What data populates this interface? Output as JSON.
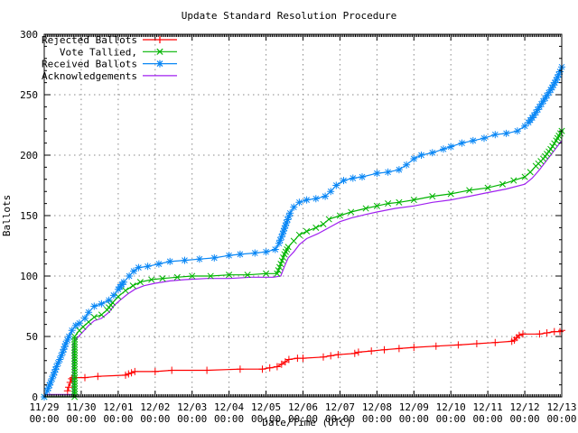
{
  "title": "Update Standard Resolution Procedure",
  "axes": {
    "ylabel": "Ballots",
    "xlabel": "Date/Time (UTC)",
    "ylim": [
      0,
      300
    ],
    "y_ticks": [
      0,
      50,
      100,
      150,
      200,
      250,
      300
    ],
    "y_minor_step": 10,
    "x_minor_per_day": 24,
    "x_ticks": [
      {
        "date": "11/29",
        "time": "00:00"
      },
      {
        "date": "11/30",
        "time": "00:00"
      },
      {
        "date": "12/01",
        "time": "00:00"
      },
      {
        "date": "12/02",
        "time": "00:00"
      },
      {
        "date": "12/03",
        "time": "00:00"
      },
      {
        "date": "12/04",
        "time": "00:00"
      },
      {
        "date": "12/05",
        "time": "00:00"
      },
      {
        "date": "12/06",
        "time": "00:00"
      },
      {
        "date": "12/07",
        "time": "00:00"
      },
      {
        "date": "12/08",
        "time": "00:00"
      },
      {
        "date": "12/09",
        "time": "00:00"
      },
      {
        "date": "12/10",
        "time": "00:00"
      },
      {
        "date": "12/11",
        "time": "00:00"
      },
      {
        "date": "12/12",
        "time": "00:00"
      },
      {
        "date": "12/13",
        "time": "00:00"
      }
    ],
    "grid_color": "#888888",
    "border_color": "#000000"
  },
  "chart_data": {
    "type": "line",
    "title": "Update Standard Resolution Procedure",
    "xlabel": "Date/Time (UTC)",
    "ylabel": "Ballots",
    "ylim": [
      0,
      300
    ],
    "x_unit": "days since 11/29 00:00 UTC",
    "x_range_days": 14,
    "grid": true,
    "legend_position": "top-left",
    "series": [
      {
        "name": "Rejected Ballots",
        "color": "#ff0000",
        "marker": "plus",
        "points": [
          [
            0.63,
            5
          ],
          [
            0.66,
            8
          ],
          [
            0.7,
            12
          ],
          [
            0.74,
            15
          ],
          [
            0.78,
            16
          ],
          [
            1.1,
            16
          ],
          [
            1.45,
            17
          ],
          [
            2.2,
            18
          ],
          [
            2.28,
            19
          ],
          [
            2.36,
            20
          ],
          [
            2.45,
            21
          ],
          [
            3.0,
            21
          ],
          [
            3.45,
            22
          ],
          [
            4.4,
            22
          ],
          [
            5.3,
            23
          ],
          [
            5.9,
            23
          ],
          [
            6.1,
            24
          ],
          [
            6.3,
            25
          ],
          [
            6.42,
            27
          ],
          [
            6.52,
            29
          ],
          [
            6.62,
            31
          ],
          [
            6.85,
            32
          ],
          [
            7.0,
            32
          ],
          [
            7.55,
            33
          ],
          [
            7.75,
            34
          ],
          [
            7.95,
            35
          ],
          [
            8.4,
            36
          ],
          [
            8.5,
            37
          ],
          [
            8.85,
            38
          ],
          [
            9.2,
            39
          ],
          [
            9.6,
            40
          ],
          [
            10.0,
            41
          ],
          [
            10.6,
            42
          ],
          [
            11.2,
            43
          ],
          [
            11.7,
            44
          ],
          [
            12.2,
            45
          ],
          [
            12.65,
            46
          ],
          [
            12.72,
            47
          ],
          [
            12.78,
            49
          ],
          [
            12.85,
            51
          ],
          [
            12.95,
            52
          ],
          [
            13.4,
            52
          ],
          [
            13.6,
            53
          ],
          [
            13.8,
            54
          ],
          [
            13.95,
            54
          ],
          [
            14.0,
            55
          ]
        ]
      },
      {
        "name": "Vote Tallied,",
        "color": "#00b400",
        "marker": "cross",
        "points": [
          [
            0,
            0
          ],
          [
            0.82,
            0
          ],
          [
            0.82,
            50
          ],
          [
            0.95,
            55
          ],
          [
            1.05,
            58
          ],
          [
            1.2,
            62
          ],
          [
            1.35,
            66
          ],
          [
            1.55,
            68
          ],
          [
            1.7,
            72
          ],
          [
            1.85,
            78
          ],
          [
            2.0,
            83
          ],
          [
            2.2,
            88
          ],
          [
            2.4,
            92
          ],
          [
            2.6,
            95
          ],
          [
            2.9,
            97
          ],
          [
            3.2,
            98
          ],
          [
            3.6,
            99
          ],
          [
            4.0,
            100
          ],
          [
            4.5,
            100
          ],
          [
            5.0,
            101
          ],
          [
            5.5,
            101
          ],
          [
            6.0,
            102
          ],
          [
            6.3,
            102
          ],
          [
            6.4,
            110
          ],
          [
            6.5,
            118
          ],
          [
            6.6,
            124
          ],
          [
            6.75,
            129
          ],
          [
            6.9,
            134
          ],
          [
            7.1,
            137
          ],
          [
            7.35,
            140
          ],
          [
            7.55,
            143
          ],
          [
            7.7,
            147
          ],
          [
            8.0,
            150
          ],
          [
            8.3,
            153
          ],
          [
            8.7,
            156
          ],
          [
            9.0,
            158
          ],
          [
            9.3,
            160
          ],
          [
            9.6,
            161
          ],
          [
            10.0,
            163
          ],
          [
            10.5,
            166
          ],
          [
            11.0,
            168
          ],
          [
            11.5,
            171
          ],
          [
            12.0,
            173
          ],
          [
            12.4,
            176
          ],
          [
            12.7,
            179
          ],
          [
            13.0,
            182
          ],
          [
            13.15,
            186
          ],
          [
            13.3,
            191
          ],
          [
            13.5,
            197
          ],
          [
            13.7,
            205
          ],
          [
            13.85,
            212
          ],
          [
            14.0,
            220
          ]
        ]
      },
      {
        "name": "Received Ballots",
        "color": "#0a87f5",
        "marker": "star",
        "points": [
          [
            0,
            0
          ],
          [
            0.08,
            5
          ],
          [
            0.17,
            12
          ],
          [
            0.25,
            18
          ],
          [
            0.33,
            25
          ],
          [
            0.42,
            31
          ],
          [
            0.5,
            37
          ],
          [
            0.58,
            44
          ],
          [
            0.67,
            50
          ],
          [
            0.75,
            55
          ],
          [
            0.85,
            59
          ],
          [
            0.95,
            61
          ],
          [
            1.1,
            65
          ],
          [
            1.2,
            70
          ],
          [
            1.35,
            75
          ],
          [
            1.55,
            77
          ],
          [
            1.75,
            80
          ],
          [
            1.88,
            84
          ],
          [
            2.0,
            89
          ],
          [
            2.15,
            95
          ],
          [
            2.3,
            100
          ],
          [
            2.42,
            104
          ],
          [
            2.55,
            107
          ],
          [
            2.8,
            108
          ],
          [
            3.1,
            110
          ],
          [
            3.4,
            112
          ],
          [
            3.8,
            113
          ],
          [
            4.2,
            114
          ],
          [
            4.6,
            115
          ],
          [
            5.0,
            117
          ],
          [
            5.3,
            118
          ],
          [
            5.7,
            119
          ],
          [
            6.0,
            120
          ],
          [
            6.25,
            122
          ],
          [
            6.35,
            127
          ],
          [
            6.45,
            135
          ],
          [
            6.55,
            144
          ],
          [
            6.65,
            152
          ],
          [
            6.75,
            157
          ],
          [
            6.9,
            161
          ],
          [
            7.1,
            163
          ],
          [
            7.35,
            164
          ],
          [
            7.6,
            166
          ],
          [
            7.75,
            170
          ],
          [
            7.9,
            175
          ],
          [
            8.1,
            179
          ],
          [
            8.35,
            181
          ],
          [
            8.6,
            182
          ],
          [
            9.0,
            185
          ],
          [
            9.3,
            186
          ],
          [
            9.6,
            188
          ],
          [
            9.8,
            192
          ],
          [
            10.0,
            197
          ],
          [
            10.2,
            200
          ],
          [
            10.5,
            202
          ],
          [
            10.8,
            205
          ],
          [
            11.0,
            207
          ],
          [
            11.3,
            210
          ],
          [
            11.6,
            212
          ],
          [
            11.9,
            214
          ],
          [
            12.2,
            217
          ],
          [
            12.5,
            218
          ],
          [
            12.8,
            220
          ],
          [
            13.0,
            224
          ],
          [
            13.1,
            227
          ],
          [
            13.25,
            233
          ],
          [
            13.4,
            240
          ],
          [
            13.55,
            247
          ],
          [
            13.7,
            254
          ],
          [
            13.85,
            262
          ],
          [
            13.95,
            269
          ],
          [
            14.0,
            273
          ]
        ]
      },
      {
        "name": "Acknowledgements",
        "color": "#a020f0",
        "marker": "none",
        "points": [
          [
            0,
            2
          ],
          [
            0.78,
            2
          ],
          [
            0.78,
            44
          ],
          [
            0.9,
            49
          ],
          [
            1.05,
            54
          ],
          [
            1.2,
            59
          ],
          [
            1.35,
            63
          ],
          [
            1.55,
            65
          ],
          [
            1.75,
            70
          ],
          [
            1.9,
            76
          ],
          [
            2.05,
            80
          ],
          [
            2.25,
            85
          ],
          [
            2.45,
            89
          ],
          [
            2.7,
            92
          ],
          [
            3.0,
            94
          ],
          [
            3.4,
            96
          ],
          [
            3.8,
            97
          ],
          [
            4.4,
            98
          ],
          [
            5.0,
            98
          ],
          [
            5.6,
            99
          ],
          [
            6.2,
            99
          ],
          [
            6.4,
            100
          ],
          [
            6.5,
            108
          ],
          [
            6.6,
            115
          ],
          [
            6.75,
            120
          ],
          [
            6.9,
            126
          ],
          [
            7.1,
            131
          ],
          [
            7.4,
            135
          ],
          [
            7.7,
            140
          ],
          [
            8.0,
            145
          ],
          [
            8.3,
            148
          ],
          [
            8.7,
            151
          ],
          [
            9.0,
            153
          ],
          [
            9.5,
            156
          ],
          [
            10.0,
            158
          ],
          [
            10.5,
            161
          ],
          [
            11.0,
            163
          ],
          [
            11.5,
            166
          ],
          [
            12.0,
            169
          ],
          [
            12.5,
            172
          ],
          [
            13.0,
            176
          ],
          [
            13.2,
            181
          ],
          [
            13.4,
            188
          ],
          [
            13.6,
            196
          ],
          [
            13.8,
            204
          ],
          [
            14.0,
            212
          ]
        ]
      }
    ]
  }
}
